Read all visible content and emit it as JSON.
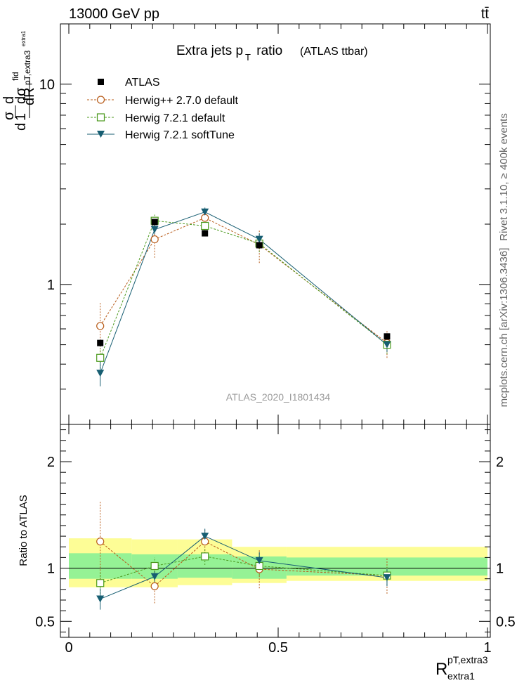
{
  "header": {
    "energy_label": "13000 GeV pp",
    "process_label": "tt̄"
  },
  "side_labels": {
    "rivet": "Rivet 3.1.10, ≥ 400k events",
    "mcplots": "mcplots.cern.ch [arXiv:1306.3436]"
  },
  "chart_data": [
    {
      "type": "scatter",
      "title": "Extra jets p",
      "title_sub": "T",
      "title_rest": " ratio",
      "title_note": "(ATLAS ttbar)",
      "watermark": "ATLAS_2020_I1801434",
      "ylabel": "1/σ dσ/dR",
      "ylabel_parts": {
        "d": "d",
        "one": "1",
        "sigma": "σ",
        "dsigma": "dσ",
        "fid": "fid",
        "sub": "pT,extra3",
        "subsub": "extra1",
        "dR": "dR"
      },
      "xlim": [
        0,
        1.0
      ],
      "ylim": [
        0.2,
        20
      ],
      "yscale": "log",
      "yticks": [
        {
          "v": 1,
          "label": "1"
        },
        {
          "v": 10,
          "label": "10"
        }
      ],
      "legend_position": "top-left",
      "x": [
        0.075,
        0.205,
        0.325,
        0.455,
        0.76
      ],
      "series": [
        {
          "name": "ATLAS",
          "key": "atlas",
          "color": "#000000",
          "marker": "square-filled",
          "line": "none",
          "values": [
            0.51,
            2.05,
            1.8,
            1.57,
            0.55
          ],
          "err_lo": [
            0.02,
            0.06,
            0.06,
            0.05,
            0.02
          ],
          "err_hi": [
            0.02,
            0.06,
            0.06,
            0.05,
            0.02
          ]
        },
        {
          "name": "Herwig++ 2.7.0 default",
          "key": "hpp",
          "color": "#b85c1a",
          "marker": "circle-open",
          "line": "dashed",
          "values": [
            0.62,
            1.68,
            2.15,
            1.58,
            0.51
          ],
          "err_lo": [
            0.19,
            0.32,
            0.2,
            0.3,
            0.08
          ],
          "err_hi": [
            0.19,
            0.32,
            0.2,
            0.3,
            0.08
          ]
        },
        {
          "name": "Herwig 7.2.1 default",
          "key": "h7def",
          "color": "#4c9a1e",
          "marker": "square-open",
          "line": "dashed",
          "values": [
            0.43,
            2.08,
            1.96,
            1.6,
            0.5
          ],
          "err_lo": [
            0.05,
            0.15,
            0.15,
            0.15,
            0.05
          ],
          "err_hi": [
            0.05,
            0.15,
            0.15,
            0.15,
            0.05
          ]
        },
        {
          "name": "Herwig 7.2.1 softTune",
          "key": "h7soft",
          "color": "#175e72",
          "marker": "triangle-down-filled",
          "line": "solid",
          "values": [
            0.36,
            1.88,
            2.3,
            1.68,
            0.5
          ],
          "err_lo": [
            0.05,
            0.1,
            0.12,
            0.12,
            0.04
          ],
          "err_hi": [
            0.05,
            0.1,
            0.12,
            0.12,
            0.04
          ]
        }
      ]
    },
    {
      "type": "scatter",
      "ylabel": "Ratio to ATLAS",
      "xlabel": "R",
      "xlabel_sup": "pT,extra3",
      "xlabel_sub": "extra1",
      "xlim": [
        0,
        1.0
      ],
      "ylim": [
        0.35,
        2.35
      ],
      "yticks": [
        {
          "v": 0.5,
          "label": "0.5"
        },
        {
          "v": 1,
          "label": "1"
        },
        {
          "v": 2,
          "label": "2"
        }
      ],
      "xticks": [
        {
          "v": 0,
          "label": "0"
        },
        {
          "v": 0.5,
          "label": "0.5"
        },
        {
          "v": 1,
          "label": "1"
        }
      ],
      "bins": [
        [
          0,
          0.15
        ],
        [
          0.15,
          0.26
        ],
        [
          0.26,
          0.39
        ],
        [
          0.39,
          0.52
        ],
        [
          0.52,
          1.0
        ]
      ],
      "band_inner": [
        [
          0.9,
          1.14
        ],
        [
          0.9,
          1.13
        ],
        [
          0.91,
          1.13
        ],
        [
          0.9,
          1.11
        ],
        [
          0.93,
          1.1
        ]
      ],
      "band_outer": [
        [
          0.82,
          1.28
        ],
        [
          0.82,
          1.27
        ],
        [
          0.84,
          1.27
        ],
        [
          0.86,
          1.2
        ],
        [
          0.88,
          1.2
        ]
      ],
      "x": [
        0.075,
        0.205,
        0.325,
        0.455,
        0.76
      ],
      "series": [
        {
          "name": "Herwig++ 2.7.0 default",
          "key": "hpp",
          "values": [
            1.25,
            0.83,
            1.25,
            0.99,
            0.93
          ],
          "err_lo": [
            0.38,
            0.16,
            0.11,
            0.18,
            0.17
          ],
          "err_hi": [
            0.38,
            0.16,
            0.11,
            0.18,
            0.17
          ]
        },
        {
          "name": "Herwig 7.2.1 default",
          "key": "h7def",
          "values": [
            0.86,
            1.02,
            1.11,
            1.02,
            0.93
          ],
          "err_lo": [
            0.1,
            0.08,
            0.08,
            0.09,
            0.09
          ],
          "err_hi": [
            0.1,
            0.08,
            0.08,
            0.09,
            0.09
          ]
        },
        {
          "name": "Herwig 7.2.1 softTune",
          "key": "h7soft",
          "values": [
            0.71,
            0.92,
            1.3,
            1.07,
            0.91
          ],
          "err_lo": [
            0.1,
            0.05,
            0.07,
            0.08,
            0.08
          ],
          "err_hi": [
            0.1,
            0.05,
            0.07,
            0.08,
            0.08
          ]
        }
      ]
    }
  ]
}
